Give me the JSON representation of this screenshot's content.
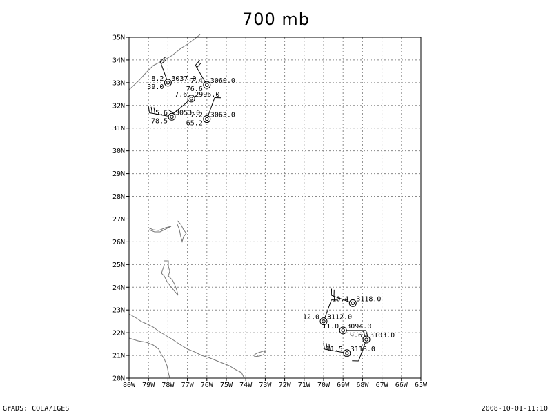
{
  "title": "700 mb",
  "footer": {
    "left": "GrADS: COLA/IGES",
    "right": "2008-10-01-11:10"
  },
  "map": {
    "lon_range": [
      -80,
      -65
    ],
    "lat_range": [
      20,
      35
    ],
    "lon_ticks": [
      {
        "v": -80,
        "label": "80W"
      },
      {
        "v": -79,
        "label": "79W"
      },
      {
        "v": -78,
        "label": "78W"
      },
      {
        "v": -77,
        "label": "77W"
      },
      {
        "v": -76,
        "label": "76W"
      },
      {
        "v": -75,
        "label": "75W"
      },
      {
        "v": -74,
        "label": "74W"
      },
      {
        "v": -73,
        "label": "73W"
      },
      {
        "v": -72,
        "label": "72W"
      },
      {
        "v": -71,
        "label": "71W"
      },
      {
        "v": -70,
        "label": "70W"
      },
      {
        "v": -69,
        "label": "69W"
      },
      {
        "v": -68,
        "label": "68W"
      },
      {
        "v": -67,
        "label": "67W"
      },
      {
        "v": -66,
        "label": "66W"
      },
      {
        "v": -65,
        "label": "65W"
      }
    ],
    "lat_ticks": [
      {
        "v": 20,
        "label": "20N"
      },
      {
        "v": 21,
        "label": "21N"
      },
      {
        "v": 22,
        "label": "22N"
      },
      {
        "v": 23,
        "label": "23N"
      },
      {
        "v": 24,
        "label": "24N"
      },
      {
        "v": 25,
        "label": "25N"
      },
      {
        "v": 26,
        "label": "26N"
      },
      {
        "v": 27,
        "label": "27N"
      },
      {
        "v": 28,
        "label": "28N"
      },
      {
        "v": 29,
        "label": "29N"
      },
      {
        "v": 30,
        "label": "30N"
      },
      {
        "v": 31,
        "label": "31N"
      },
      {
        "v": 32,
        "label": "32N"
      },
      {
        "v": 33,
        "label": "33N"
      },
      {
        "v": 34,
        "label": "34N"
      },
      {
        "v": 35,
        "label": "35N"
      }
    ],
    "grid": true,
    "stations": [
      {
        "lon": -78.0,
        "lat": 33.0,
        "labels": [
          {
            "text": "8.2",
            "pos": "ul"
          },
          {
            "text": "39.0",
            "pos": "ll"
          },
          {
            "text": "3037.0",
            "pos": "ur"
          }
        ],
        "barb": {
          "dir": 340,
          "barbs": 2
        }
      },
      {
        "lon": -76.0,
        "lat": 32.9,
        "labels": [
          {
            "text": "7.4",
            "pos": "ul"
          },
          {
            "text": "76.6",
            "pos": "ll"
          },
          {
            "text": "3060.0",
            "pos": "ur"
          }
        ],
        "barb": {
          "dir": 330,
          "barbs": 2
        }
      },
      {
        "lon": -76.8,
        "lat": 32.3,
        "labels": [
          {
            "text": "7.6",
            "pos": "ul"
          },
          {
            "text": "2996.0",
            "pos": "ur"
          }
        ],
        "barb": {
          "dir": 230,
          "barbs": 1
        }
      },
      {
        "lon": -77.8,
        "lat": 31.5,
        "labels": [
          {
            "text": "5.6",
            "pos": "ul"
          },
          {
            "text": "78.5",
            "pos": "ll"
          },
          {
            "text": "3053.0",
            "pos": "ur"
          }
        ],
        "barb": {
          "dir": 280,
          "barbs": 3
        }
      },
      {
        "lon": -76.0,
        "lat": 31.4,
        "labels": [
          {
            "text": "7.2",
            "pos": "ul"
          },
          {
            "text": "65.2",
            "pos": "ll"
          },
          {
            "text": "3063.0",
            "pos": "ur"
          }
        ],
        "barb": {
          "dir": 20,
          "barbs": 1
        }
      },
      {
        "lon": -68.5,
        "lat": 23.3,
        "labels": [
          {
            "text": "10.4",
            "pos": "ul"
          },
          {
            "text": "3118.0",
            "pos": "ur"
          }
        ],
        "barb": {
          "dir": 290,
          "barbs": 2
        }
      },
      {
        "lon": -70.0,
        "lat": 22.5,
        "labels": [
          {
            "text": "12.0",
            "pos": "ul"
          },
          {
            "text": "3112.0",
            "pos": "ur"
          }
        ],
        "barb": {
          "dir": 20,
          "barbs": 1
        }
      },
      {
        "lon": -69.0,
        "lat": 22.1,
        "labels": [
          {
            "text": "11.0",
            "pos": "ul"
          },
          {
            "text": "3094.0",
            "pos": "ur"
          }
        ],
        "barb": {
          "dir": 90,
          "barbs": 2
        }
      },
      {
        "lon": -67.8,
        "lat": 21.7,
        "labels": [
          {
            "text": "9.6",
            "pos": "ul"
          },
          {
            "text": "3103.0",
            "pos": "ur"
          }
        ],
        "barb": {
          "dir": 200,
          "barbs": 1
        }
      },
      {
        "lon": -68.8,
        "lat": 21.1,
        "labels": [
          {
            "text": "11.5",
            "pos": "ul"
          },
          {
            "text": "3118.0",
            "pos": "ur"
          }
        ],
        "barb": {
          "dir": 280,
          "barbs": 3
        }
      }
    ]
  }
}
